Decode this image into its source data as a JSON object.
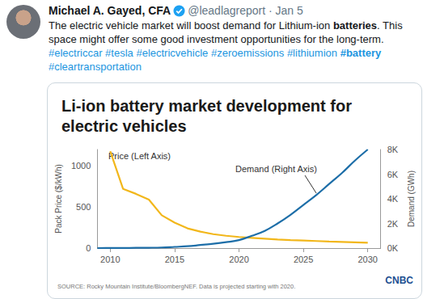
{
  "tweet": {
    "author": "Michael A. Gayed, CFA",
    "meta": "@leadlagreport · Jan 5",
    "text": [
      {
        "text": "The electric vehicle market will boost demand for Lithium-ion ",
        "style": "plain"
      },
      {
        "text": "batteries",
        "style": "bold"
      },
      {
        "text": ". This space might offer some good investment opportunities for the long-term. ",
        "style": "plain"
      },
      {
        "text": "#electriccar",
        "style": "tag"
      },
      {
        "text": " ",
        "style": "plain"
      },
      {
        "text": "#tesla",
        "style": "tag"
      },
      {
        "text": " ",
        "style": "plain"
      },
      {
        "text": "#electricvehicle",
        "style": "tag"
      },
      {
        "text": " ",
        "style": "plain"
      },
      {
        "text": "#zeroemissions",
        "style": "tag"
      },
      {
        "text": " ",
        "style": "plain"
      },
      {
        "text": "#lithiumion",
        "style": "tag"
      },
      {
        "text": " ",
        "style": "plain"
      },
      {
        "text": "#battery",
        "style": "tag_bold"
      },
      {
        "text": " ",
        "style": "plain"
      },
      {
        "text": "#cleartransportation",
        "style": "tag"
      }
    ]
  },
  "chart_data": {
    "type": "line",
    "title": "Li-ion battery market development for electric vehicles",
    "ylabel": "Pack Price ($/kWh)",
    "y2label": "Demand (GWh)",
    "annotations": [
      "Price (Left Axis)",
      "Demand (Right Axis)"
    ],
    "source": "SOURCE: Rocky Mountain Institute/BloombergNEF. Data is projected starting with 2020.",
    "logo": "CNBC",
    "x": [
      2009,
      2010,
      2011,
      2012,
      2013,
      2014,
      2015,
      2016,
      2017,
      2018,
      2019,
      2020,
      2021,
      2022,
      2023,
      2024,
      2025,
      2026,
      2027,
      2028,
      2029,
      2030
    ],
    "xlim": [
      2009,
      2031
    ],
    "xticks": [
      2010,
      2015,
      2020,
      2025,
      2030
    ],
    "ylim": [
      0,
      1200
    ],
    "yticks": [
      0,
      500,
      1000
    ],
    "y2lim": [
      0,
      8000
    ],
    "y2ticks": [
      {
        "value": 0,
        "label": "0K"
      },
      {
        "value": 2000,
        "label": "2K"
      },
      {
        "value": 4000,
        "label": "4K"
      },
      {
        "value": 6000,
        "label": "6K"
      },
      {
        "value": 8000,
        "label": "8K"
      }
    ],
    "grid": false,
    "series": [
      {
        "name": "Price",
        "color": "#f2b71b",
        "line_style": "straight",
        "values": [
          null,
          1180,
          720,
          660,
          590,
          400,
          310,
          240,
          200,
          170,
          150,
          135,
          125,
          115,
          105,
          98,
          92,
          86,
          80,
          75,
          70,
          65
        ]
      },
      {
        "name": "Demand",
        "color": "#1d6ea8",
        "axis": "y2",
        "line_style": "smooth",
        "values": [
          0,
          5,
          10,
          20,
          30,
          50,
          100,
          150,
          250,
          350,
          480,
          650,
          1000,
          1400,
          2000,
          2700,
          3500,
          4300,
          5200,
          6100,
          7100,
          8000
        ]
      }
    ]
  }
}
